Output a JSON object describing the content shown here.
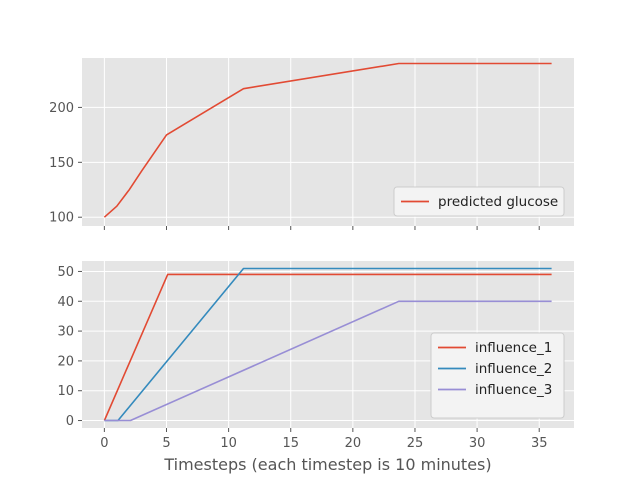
{
  "chart_data": [
    {
      "type": "line",
      "title": "",
      "xlabel": "",
      "ylabel": "",
      "xlim": [
        -1.8,
        37.8
      ],
      "ylim": [
        92,
        245
      ],
      "xticks": [
        0,
        5,
        10,
        15,
        20,
        25,
        30,
        35
      ],
      "yticks": [
        100,
        150,
        200
      ],
      "show_x_tick_labels": false,
      "grid": true,
      "legend_position": "lower-right",
      "series": [
        {
          "name": "predicted glucose",
          "color": "#E24A33",
          "x": [
            0,
            1,
            2,
            3,
            5,
            11.2,
            23.7,
            36
          ],
          "y": [
            100,
            110,
            125,
            142,
            175,
            217,
            240,
            240
          ]
        }
      ]
    },
    {
      "type": "line",
      "title": "",
      "xlabel": "Timesteps (each timestep is 10 minutes)",
      "ylabel": "",
      "xlim": [
        -1.8,
        37.8
      ],
      "ylim": [
        -2.5,
        53.5
      ],
      "xticks": [
        0,
        5,
        10,
        15,
        20,
        25,
        30,
        35
      ],
      "yticks": [
        0,
        10,
        20,
        30,
        40,
        50
      ],
      "show_x_tick_labels": true,
      "grid": true,
      "legend_position": "lower-right",
      "series": [
        {
          "name": "influence_1",
          "color": "#E24A33",
          "x": [
            0,
            5.1,
            36
          ],
          "y": [
            0,
            49,
            49
          ]
        },
        {
          "name": "influence_2",
          "color": "#348ABD",
          "x": [
            0,
            1.1,
            11.2,
            36
          ],
          "y": [
            0,
            0,
            51,
            51
          ]
        },
        {
          "name": "influence_3",
          "color": "#988ED5",
          "x": [
            0,
            2.1,
            23.7,
            36
          ],
          "y": [
            0,
            0,
            40,
            40
          ]
        }
      ]
    }
  ]
}
